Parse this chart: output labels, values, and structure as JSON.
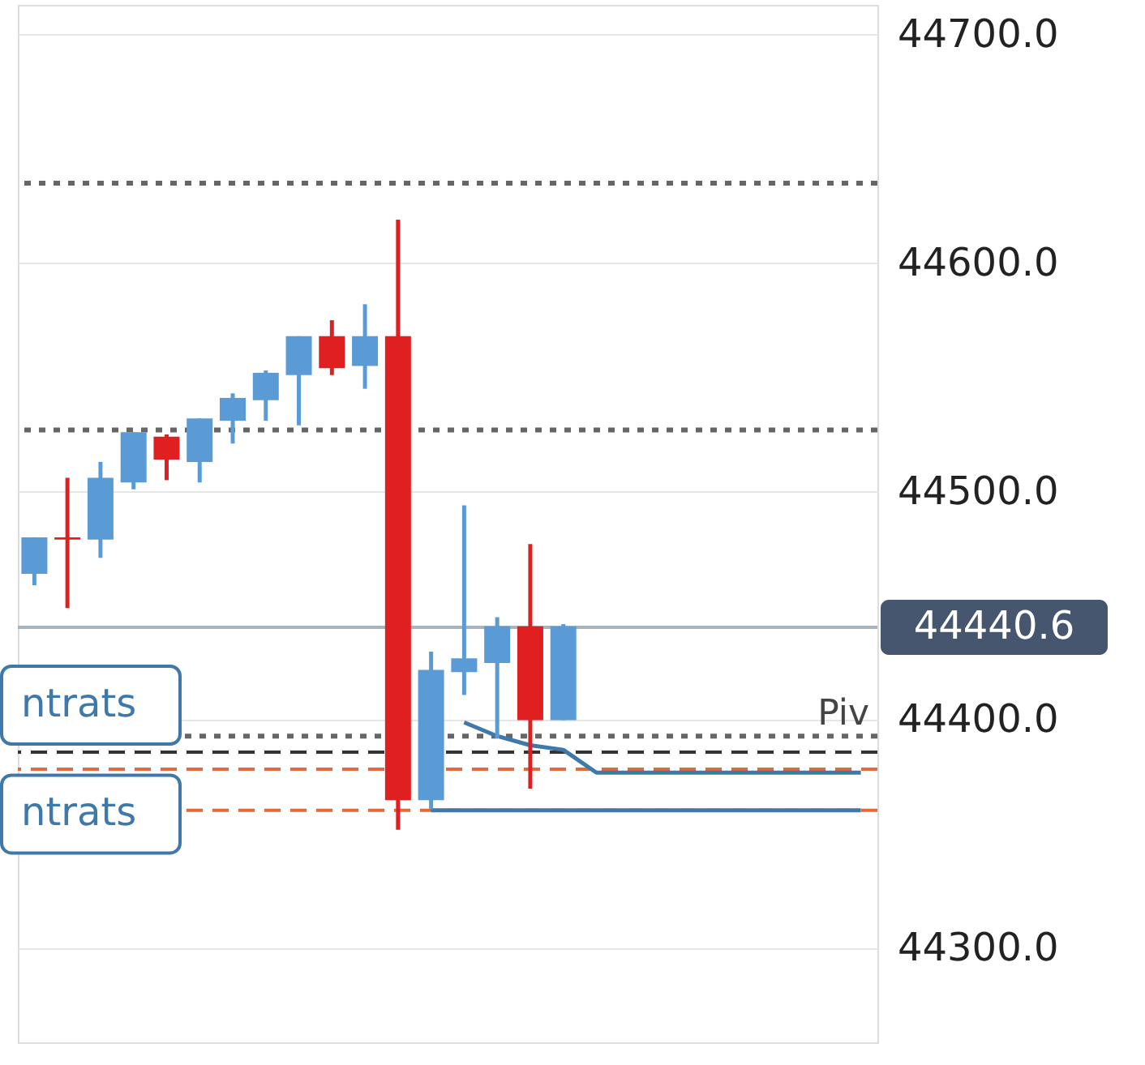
{
  "chart_data": {
    "type": "candlestick",
    "categories": [
      null,
      null,
      null,
      null,
      null,
      null,
      null,
      null,
      null,
      null,
      null,
      null,
      null,
      null,
      null,
      null,
      null,
      null,
      null,
      null,
      null,
      null,
      null,
      null,
      null,
      null
    ],
    "ohlc": [
      [
        44464,
        44480,
        44459,
        44480
      ],
      [
        44480,
        44506,
        44449,
        44479
      ],
      [
        44479,
        44513,
        44471,
        44506
      ],
      [
        44504,
        44526,
        44501,
        44526
      ],
      [
        44524,
        44525,
        44505,
        44514
      ],
      [
        44513,
        44532,
        44504,
        44532
      ],
      [
        44531,
        44543,
        44521,
        44541
      ],
      [
        44540,
        44553,
        44531,
        44552
      ],
      [
        44551,
        44568,
        44529,
        44568
      ],
      [
        44568,
        44575,
        44551,
        44554
      ],
      [
        44555,
        44582,
        44545,
        44568
      ],
      [
        44568,
        44619,
        44352,
        44365
      ],
      [
        44365,
        44430,
        44361,
        44422
      ],
      [
        44421,
        44494,
        44411,
        44427
      ],
      [
        44425,
        44445,
        44392,
        44441
      ],
      [
        44441,
        44477,
        44370,
        44400
      ],
      [
        44400,
        44442,
        44400,
        44441
      ],
      null,
      null,
      null,
      null,
      null,
      null,
      null,
      null,
      null
    ],
    "colors": [
      "#5b9bd5",
      "#e02020",
      "#5b9bd5",
      "#5b9bd5",
      "#e02020",
      "#5b9bd5",
      "#5b9bd5",
      "#5b9bd5",
      "#5b9bd5",
      "#e02020",
      "#5b9bd5",
      "#e02020",
      "#5b9bd5",
      "#5b9bd5",
      "#5b9bd5",
      "#e02020",
      "#5b9bd5",
      null,
      null,
      null,
      null,
      null,
      null,
      null,
      null,
      null
    ],
    "series": [
      {
        "type": "line",
        "color": "#3f78aa",
        "values": [
          null,
          null,
          null,
          null,
          null,
          null,
          null,
          null,
          null,
          null,
          null,
          null,
          44360.5,
          44360.5,
          44360.5,
          44360.5,
          44360.5,
          44360.5,
          44360.5,
          44360.5,
          44360.5,
          44360.5,
          44360.5,
          44360.5,
          44360.5,
          44360.5
        ]
      },
      {
        "type": "line",
        "color": "#3f78aa",
        "values": [
          null,
          null,
          null,
          null,
          null,
          null,
          null,
          null,
          null,
          null,
          null,
          null,
          null,
          44399,
          44393,
          44389,
          44387,
          44377,
          44377,
          44377,
          44377,
          44377,
          44377,
          44377,
          44377,
          44377
        ]
      }
    ],
    "ylim": [
      44259,
      44713
    ],
    "yticks": [
      {
        "value": 44300,
        "label": "44300.0"
      },
      {
        "value": 44400,
        "label": "44400.0"
      },
      {
        "value": 44500,
        "label": "44500.0"
      },
      {
        "value": 44600,
        "label": "44600.0"
      },
      {
        "value": 44700,
        "label": "44700.0"
      }
    ],
    "grid": "y",
    "tick_labels": "y",
    "marker": "none",
    "ref_lines": [
      {
        "axis": "y",
        "value": 44635,
        "label": null,
        "color": "#666666",
        "line_style": "dotted"
      },
      {
        "axis": "y",
        "value": 44527,
        "label": null,
        "color": "#666666",
        "line_style": "dotted"
      },
      {
        "axis": "y",
        "value": 44440.6,
        "label": "44440.6",
        "color": "#a9b3bd",
        "line_style": "solid"
      },
      {
        "axis": "y",
        "value": 44393,
        "label": "Piv",
        "color": "#666666",
        "line_style": "dotted"
      },
      {
        "axis": "y",
        "value": 44386,
        "label": null,
        "color": "#333333",
        "line_style": "dashed"
      },
      {
        "axis": "y",
        "value": 44378.5,
        "label": null,
        "color": "#e06a3a",
        "line_style": "dashed"
      },
      {
        "axis": "y",
        "value": 44360.5,
        "label": null,
        "color": "#e06a3a",
        "line_style": "dashed"
      }
    ],
    "annotations": [
      "ntrats",
      "ntrats"
    ]
  }
}
